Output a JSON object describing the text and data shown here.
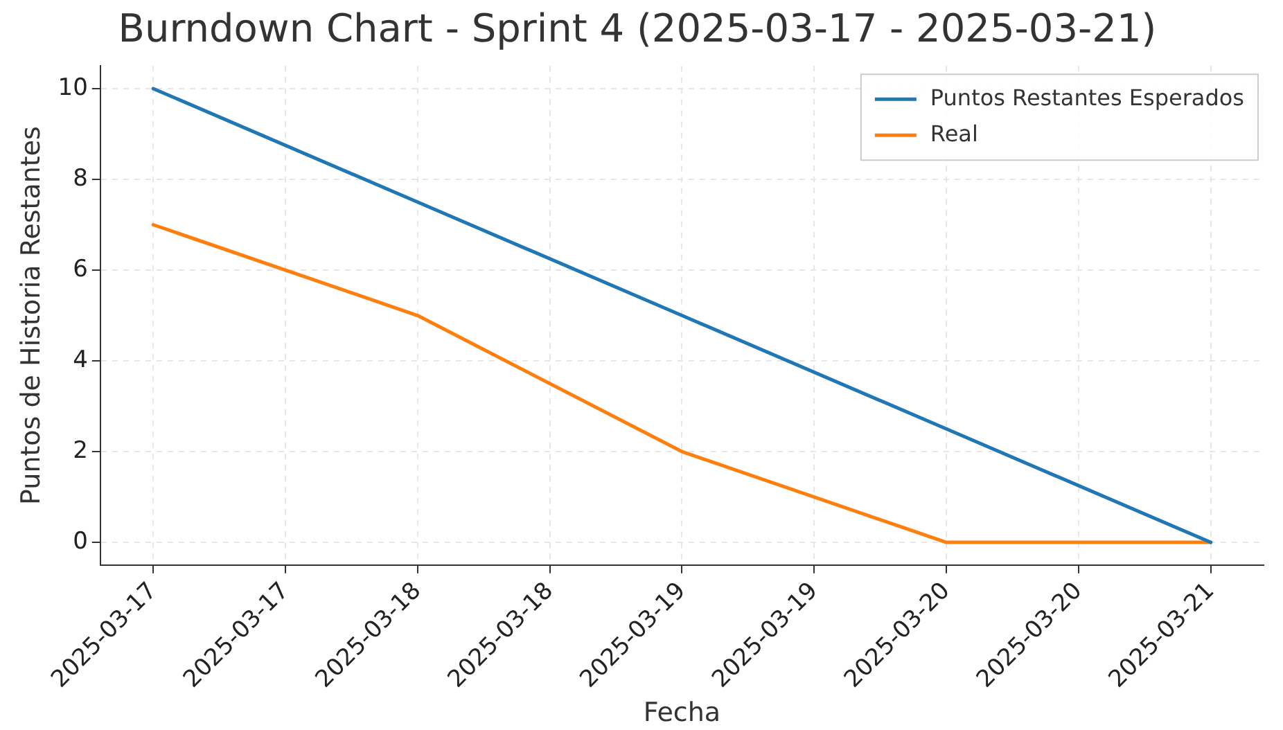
{
  "chart_data": {
    "type": "line",
    "title": "Burndown Chart - Sprint 4 (2025-03-17 - 2025-03-21)",
    "xlabel": "Fecha",
    "ylabel": "Puntos de Historia Restantes",
    "x": [
      "2025-03-17",
      "2025-03-18",
      "2025-03-19",
      "2025-03-20",
      "2025-03-21"
    ],
    "series": [
      {
        "name": "Puntos Restantes Esperados",
        "color": "#1f77b4",
        "values": [
          10,
          7.5,
          5,
          2.5,
          0
        ]
      },
      {
        "name": "Real",
        "color": "#ff7f0e",
        "values": [
          7,
          5,
          2,
          0,
          0
        ]
      }
    ],
    "xlim": [
      "2025-03-16T19:12",
      "2025-03-21T04:48"
    ],
    "xticks": [
      {
        "value": "2025-03-17",
        "label": "2025-03-17"
      },
      {
        "value": "2025-03-17T12:00",
        "label": "2025-03-17"
      },
      {
        "value": "2025-03-18",
        "label": "2025-03-18"
      },
      {
        "value": "2025-03-18T12:00",
        "label": "2025-03-18"
      },
      {
        "value": "2025-03-19",
        "label": "2025-03-19"
      },
      {
        "value": "2025-03-19T12:00",
        "label": "2025-03-19"
      },
      {
        "value": "2025-03-20",
        "label": "2025-03-20"
      },
      {
        "value": "2025-03-20T12:00",
        "label": "2025-03-20"
      },
      {
        "value": "2025-03-21",
        "label": "2025-03-21"
      }
    ],
    "ylim": [
      -0.5,
      10.5
    ],
    "yticks": [
      0,
      2,
      4,
      6,
      8,
      10
    ],
    "grid": true,
    "legend": "top right",
    "marker": "none",
    "line_style": "solid"
  }
}
